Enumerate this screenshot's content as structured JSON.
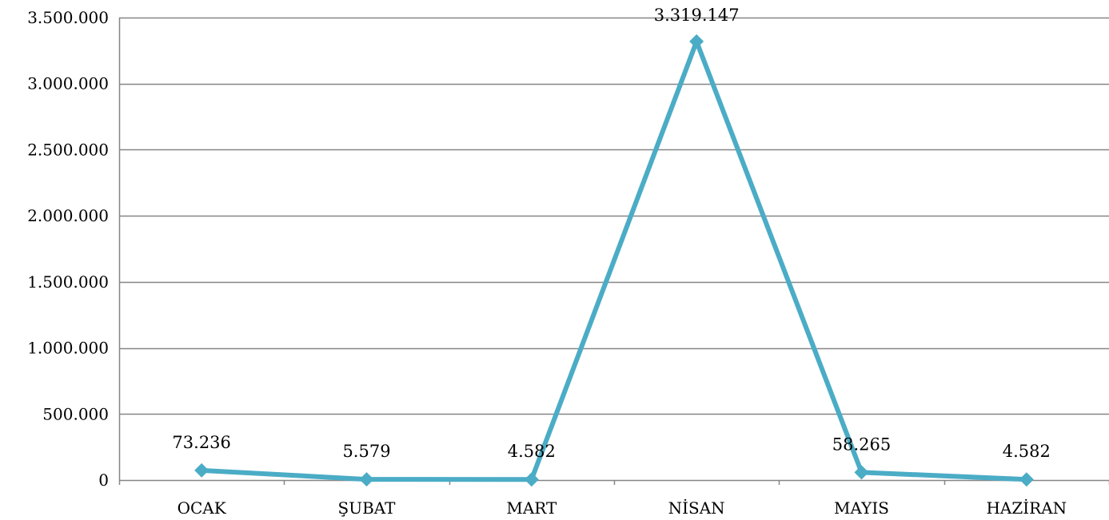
{
  "chart_data": {
    "type": "line",
    "title": "",
    "xlabel": "",
    "ylabel": "",
    "categories": [
      "OCAK",
      "ŞUBAT",
      "MART",
      "NİSAN",
      "MAYIS",
      "HAZİRAN"
    ],
    "series": [
      {
        "values": [
          73236,
          5579,
          4582,
          3319147,
          58265,
          4582
        ],
        "labels": [
          "73.236",
          "5.579",
          "4.582",
          "3.319.147",
          "58.265",
          "4.582"
        ],
        "color": "#4BACC6",
        "marker": "diamond"
      }
    ],
    "ylim": [
      0,
      3500000
    ],
    "yticks": [
      0,
      500000,
      1000000,
      1500000,
      2000000,
      2500000,
      3000000,
      3500000
    ],
    "ytick_labels": [
      "0",
      "500.000",
      "1.000.000",
      "1.500.000",
      "2.000.000",
      "2.500.000",
      "3.000.000",
      "3.500.000"
    ],
    "grid": true,
    "legend": "none",
    "colors": {
      "line": "#4BACC6",
      "grid": "#868686",
      "text": "#000000"
    }
  }
}
